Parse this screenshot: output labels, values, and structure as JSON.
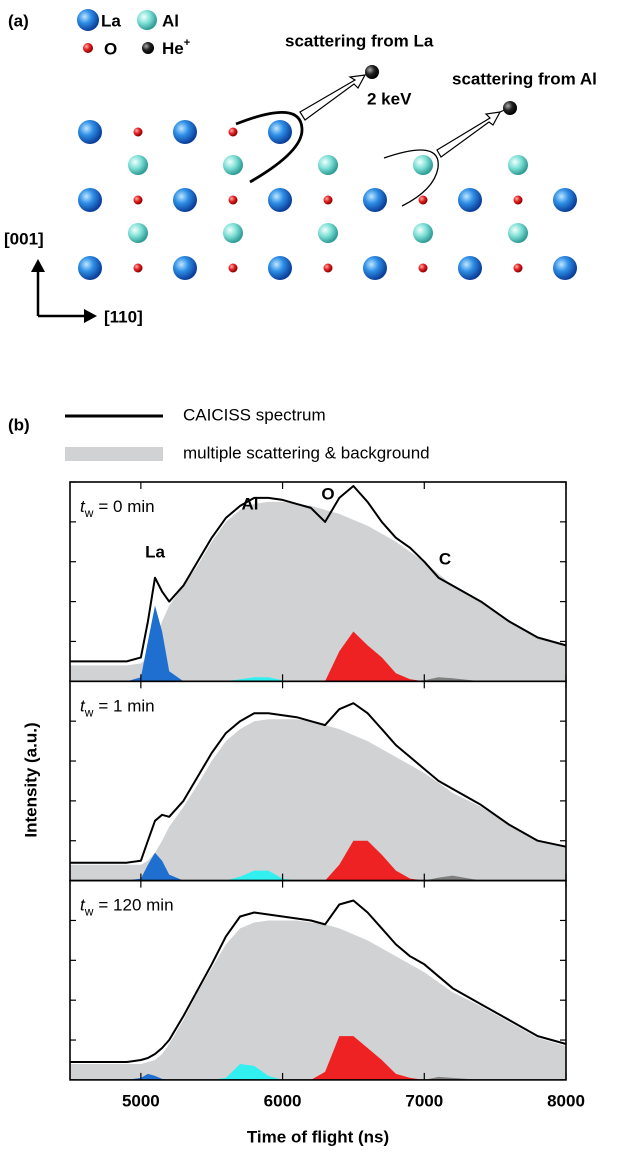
{
  "panel_a": {
    "label": "(a)",
    "legend": {
      "la": "La",
      "al": "Al",
      "o": "O",
      "he": "He",
      "he_charge": "+"
    },
    "scattering_la": "scattering from La",
    "energy": "2 keV",
    "scattering_al": "scattering from Al",
    "axis_vertical": "[001]",
    "axis_horizontal": "[110]"
  },
  "panel_b": {
    "label": "(b)",
    "ylabel": "Intensity (a.u.)"
  },
  "chart_data": [
    {
      "type": "area",
      "annotation": {
        "var": "t",
        "sub": "w",
        "text": "= 0 min"
      },
      "x": [
        4500,
        4700,
        4900,
        5000,
        5050,
        5100,
        5150,
        5200,
        5300,
        5400,
        5500,
        5600,
        5700,
        5800,
        5900,
        6000,
        6100,
        6200,
        6300,
        6400,
        6500,
        6600,
        6700,
        6800,
        6900,
        7000,
        7100,
        7200,
        7400,
        7600,
        7800,
        8000
      ],
      "xlim": [
        4500,
        8000
      ],
      "xticks": [
        5000,
        6000,
        7000,
        8000
      ],
      "ylim": [
        0,
        100
      ],
      "yticks": [
        0,
        20,
        40,
        60,
        80,
        100
      ],
      "series": [
        {
          "name": "multiple scattering & background",
          "color": "#d1d2d3",
          "fill": true,
          "values": [
            8,
            8,
            8,
            9,
            12,
            20,
            30,
            38,
            48,
            58,
            70,
            80,
            86,
            89,
            90,
            90,
            89,
            88,
            86,
            84,
            81,
            78,
            74,
            70,
            65,
            60,
            54,
            48,
            40,
            30,
            22,
            18
          ]
        },
        {
          "name": "La",
          "color": "#1f6fd1",
          "fill": true,
          "values": [
            0,
            0,
            0,
            2,
            20,
            38,
            25,
            5,
            0,
            0,
            0,
            0,
            0,
            0,
            0,
            0,
            0,
            0,
            0,
            0,
            0,
            0,
            0,
            0,
            0,
            0,
            0,
            0,
            0,
            0,
            0,
            0
          ]
        },
        {
          "name": "Al",
          "color": "#33f0f0",
          "fill": true,
          "values": [
            0,
            0,
            0,
            0,
            0,
            0,
            0,
            0,
            0,
            0,
            0,
            0,
            1,
            2,
            2,
            0.5,
            0,
            0,
            0,
            0,
            0,
            0,
            0,
            0,
            0,
            0,
            0,
            0,
            0,
            0,
            0,
            0
          ]
        },
        {
          "name": "O",
          "color": "#ee2222",
          "fill": true,
          "values": [
            0,
            0,
            0,
            0,
            0,
            0,
            0,
            0,
            0,
            0,
            0,
            0,
            0,
            0,
            0,
            0,
            0,
            0,
            0,
            15,
            25,
            18,
            12,
            4,
            1,
            0,
            0,
            0,
            0,
            0,
            0,
            0
          ]
        },
        {
          "name": "C",
          "color": "#808080",
          "fill": true,
          "values": [
            0,
            0,
            0,
            0,
            0,
            0,
            0,
            0,
            0,
            0,
            0,
            0,
            0,
            0,
            0,
            0,
            0,
            0,
            0,
            0,
            0,
            0,
            0,
            0,
            0,
            0.5,
            2,
            1.5,
            0,
            0,
            0,
            0
          ]
        },
        {
          "name": "CAICISS spectrum",
          "color": "#000000",
          "fill": false,
          "values": [
            10,
            10,
            10,
            12,
            30,
            52,
            45,
            40,
            48,
            60,
            72,
            82,
            88,
            92,
            92,
            91,
            89,
            87,
            80,
            92,
            98,
            90,
            80,
            72,
            67,
            60,
            52,
            48,
            40,
            30,
            22,
            18
          ]
        }
      ]
    },
    {
      "type": "area",
      "annotation": {
        "var": "t",
        "sub": "w",
        "text": "= 1 min"
      },
      "x": [
        4500,
        4700,
        4900,
        5000,
        5050,
        5100,
        5150,
        5200,
        5300,
        5400,
        5500,
        5600,
        5700,
        5800,
        5900,
        6000,
        6100,
        6200,
        6300,
        6400,
        6500,
        6600,
        6700,
        6800,
        6900,
        7000,
        7100,
        7200,
        7400,
        7600,
        7800,
        8000
      ],
      "xlim": [
        4500,
        8000
      ],
      "xticks": [
        5000,
        6000,
        7000,
        8000
      ],
      "ylim": [
        0,
        100
      ],
      "yticks": [
        0,
        20,
        40,
        60,
        80,
        100
      ],
      "series": [
        {
          "color": "#d1d2d3",
          "fill": true,
          "values": [
            8,
            8,
            8,
            8,
            10,
            14,
            20,
            27,
            37,
            48,
            60,
            70,
            76,
            80,
            81,
            81,
            81,
            80,
            78,
            76,
            73,
            70,
            66,
            62,
            58,
            54,
            49,
            44,
            37,
            28,
            20,
            17
          ]
        },
        {
          "color": "#1f6fd1",
          "fill": true,
          "values": [
            0,
            0,
            0,
            1,
            8,
            14,
            10,
            3,
            0,
            0,
            0,
            0,
            0,
            0,
            0,
            0,
            0,
            0,
            0,
            0,
            0,
            0,
            0,
            0,
            0,
            0,
            0,
            0,
            0,
            0,
            0,
            0
          ]
        },
        {
          "color": "#33f0f0",
          "fill": true,
          "values": [
            0,
            0,
            0,
            0,
            0,
            0,
            0,
            0,
            0,
            0,
            0,
            0,
            2,
            5,
            5,
            1,
            0,
            0,
            0,
            0,
            0,
            0,
            0,
            0,
            0,
            0,
            0,
            0,
            0,
            0,
            0,
            0
          ]
        },
        {
          "color": "#ee2222",
          "fill": true,
          "values": [
            0,
            0,
            0,
            0,
            0,
            0,
            0,
            0,
            0,
            0,
            0,
            0,
            0,
            0,
            0,
            0,
            0,
            0,
            0,
            8,
            20,
            20,
            13,
            5,
            1,
            0,
            0,
            0,
            0,
            0,
            0,
            0
          ]
        },
        {
          "color": "#808080",
          "fill": true,
          "values": [
            0,
            0,
            0,
            0,
            0,
            0,
            0,
            0,
            0,
            0,
            0,
            0,
            0,
            0,
            0,
            0,
            0,
            0,
            0,
            0,
            0,
            0,
            0,
            0,
            0,
            0,
            1.5,
            2.5,
            0,
            0,
            0,
            0
          ]
        },
        {
          "color": "#000000",
          "fill": false,
          "values": [
            9,
            9,
            9,
            10,
            20,
            30,
            33,
            32,
            40,
            52,
            64,
            74,
            80,
            84,
            84,
            83,
            82,
            80,
            78,
            86,
            89,
            84,
            76,
            68,
            62,
            56,
            50,
            46,
            38,
            28,
            20,
            17
          ]
        }
      ]
    },
    {
      "type": "area",
      "annotation": {
        "var": "t",
        "sub": "w",
        "text": "= 120 min"
      },
      "x": [
        4500,
        4700,
        4900,
        5000,
        5050,
        5100,
        5150,
        5200,
        5300,
        5400,
        5500,
        5600,
        5700,
        5800,
        5900,
        6000,
        6100,
        6200,
        6300,
        6400,
        6500,
        6600,
        6700,
        6800,
        6900,
        7000,
        7100,
        7200,
        7400,
        7600,
        7800,
        8000
      ],
      "xlim": [
        4500,
        8000
      ],
      "xticks": [
        5000,
        6000,
        7000,
        8000
      ],
      "ylim": [
        0,
        100
      ],
      "yticks": [
        0,
        20,
        40,
        60,
        80,
        100
      ],
      "xlabel": "Time of flight (ns)",
      "series": [
        {
          "color": "#d1d2d3",
          "fill": true,
          "values": [
            8,
            8,
            8,
            8,
            9,
            10,
            13,
            18,
            30,
            44,
            56,
            68,
            76,
            79,
            80,
            80,
            80,
            79,
            78,
            76,
            73,
            70,
            66,
            62,
            58,
            54,
            49,
            44,
            37,
            29,
            21,
            17
          ]
        },
        {
          "color": "#1f6fd1",
          "fill": true,
          "values": [
            0,
            0,
            0,
            1,
            3,
            2,
            0.5,
            0,
            0,
            0,
            0,
            0,
            0,
            0,
            0,
            0,
            0,
            0,
            0,
            0,
            0,
            0,
            0,
            0,
            0,
            0,
            0,
            0,
            0,
            0,
            0,
            0
          ]
        },
        {
          "color": "#33f0f0",
          "fill": true,
          "values": [
            0,
            0,
            0,
            0,
            0,
            0,
            0,
            0,
            0,
            0,
            0,
            1,
            8,
            7,
            2,
            0,
            0,
            0,
            0,
            0,
            0,
            0,
            0,
            0,
            0,
            0,
            0,
            0,
            0,
            0,
            0,
            0
          ]
        },
        {
          "color": "#ee2222",
          "fill": true,
          "values": [
            0,
            0,
            0,
            0,
            0,
            0,
            0,
            0,
            0,
            0,
            0,
            0,
            0,
            0,
            0,
            0,
            0,
            0,
            4,
            22,
            22,
            16,
            10,
            3,
            1,
            0,
            0,
            0,
            0,
            0,
            0,
            0
          ]
        },
        {
          "color": "#808080",
          "fill": true,
          "values": [
            0,
            0,
            0,
            0,
            0,
            0,
            0,
            0,
            0,
            0,
            0,
            0,
            0,
            0,
            0,
            0,
            0,
            0,
            0,
            0,
            0,
            0,
            0,
            0,
            0,
            0,
            1.5,
            1,
            0,
            0,
            0,
            0
          ]
        },
        {
          "color": "#000000",
          "fill": false,
          "values": [
            9,
            9,
            9,
            10,
            11,
            13,
            16,
            20,
            32,
            45,
            58,
            72,
            82,
            84,
            83,
            82,
            81,
            80,
            78,
            88,
            90,
            84,
            76,
            68,
            62,
            58,
            52,
            46,
            38,
            30,
            22,
            18
          ]
        }
      ]
    }
  ]
}
